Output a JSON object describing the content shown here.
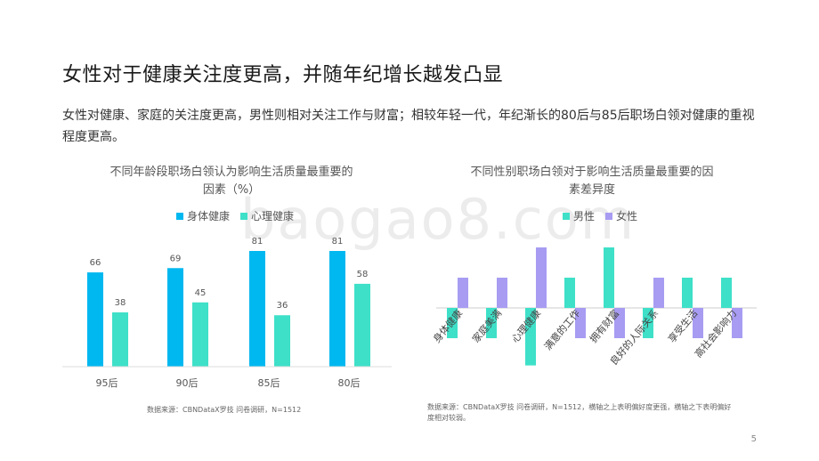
{
  "title": "女性对于健康关注度更高，并随年纪增长越发凸显",
  "intro": "女性对健康、家庭的关注度更高，男性则相对关注工作与财富；相较年轻一代，年纪渐长的80后与85后职场白领对健康的重视程度更高。",
  "watermark": "baogao8.com",
  "page_number": "5",
  "colors": {
    "blue": "#00b8f0",
    "teal": "#3ee0c8",
    "purple": "#a79cf2"
  },
  "left": {
    "title_line1": "不同年龄段职场白领认为影响生活质量最重要的",
    "title_line2": "因素（%）",
    "source": "数据来源：CBNDataX罗技 问卷调研，N=1512"
  },
  "right": {
    "title_line1": "不同性别职场白领对于影响生活质量最重要的因",
    "title_line2": "素差异度",
    "source_line1": "数据来源：CBNDataX罗技 问卷调研，N=1512，横轴之上表明偏好度更强，横轴之下表明偏好",
    "source_line2": "度相对较弱。"
  },
  "chart_data": [
    {
      "type": "bar",
      "title": "不同年龄段职场白领认为影响生活质量最重要的因素（%）",
      "categories": [
        "95后",
        "90后",
        "85后",
        "80后"
      ],
      "series": [
        {
          "name": "身体健康",
          "values": [
            66,
            69,
            81,
            81
          ]
        },
        {
          "name": "心理健康",
          "values": [
            38,
            45,
            36,
            58
          ]
        }
      ],
      "ylim": [
        0,
        100
      ]
    },
    {
      "type": "bar",
      "title": "不同性别职场白领对于影响生活质量最重要的因素差异度",
      "categories": [
        "身体健康",
        "家庭美满",
        "心理健康",
        "满意的工作",
        "拥有财富",
        "良好的人际关系",
        "享受生活",
        "高社会影响力"
      ],
      "series": [
        {
          "name": "男性",
          "values": [
            -1,
            -1,
            -1.9,
            1,
            2,
            -1,
            1,
            1
          ]
        },
        {
          "name": "女性",
          "values": [
            1,
            1,
            2,
            -1,
            -1,
            1,
            -1,
            -1
          ]
        }
      ]
    }
  ]
}
